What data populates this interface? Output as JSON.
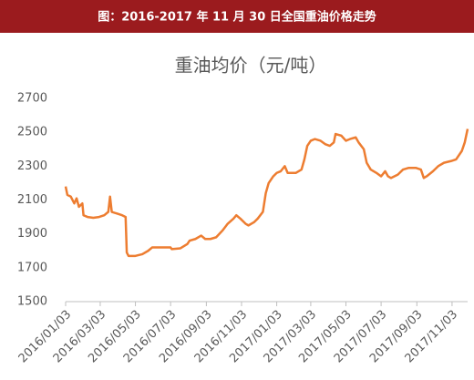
{
  "header": {
    "title": "图：2016-2017 年 11 月 30 日全国重油价格走势"
  },
  "chart_data": {
    "type": "line",
    "title": "重油均价（元/吨）",
    "x": [
      "2016/01/03",
      "2016/01/06",
      "2016/01/12",
      "2016/01/18",
      "2016/01/22",
      "2016/01/26",
      "2016/02/01",
      "2016/02/03",
      "2016/02/10",
      "2016/02/20",
      "2016/03/01",
      "2016/03/10",
      "2016/03/17",
      "2016/03/20",
      "2016/03/23",
      "2016/04/01",
      "2016/04/10",
      "2016/04/16",
      "2016/04/18",
      "2016/04/21",
      "2016/05/03",
      "2016/05/15",
      "2016/05/25",
      "2016/06/01",
      "2016/06/20",
      "2016/07/03",
      "2016/07/05",
      "2016/07/20",
      "2016/08/01",
      "2016/08/05",
      "2016/08/15",
      "2016/08/25",
      "2016/09/01",
      "2016/09/10",
      "2016/09/20",
      "2016/10/01",
      "2016/10/10",
      "2016/10/20",
      "2016/10/25",
      "2016/11/01",
      "2016/11/10",
      "2016/11/15",
      "2016/11/25",
      "2016/12/01",
      "2016/12/10",
      "2016/12/15",
      "2016/12/20",
      "2016/12/28",
      "2017/01/03",
      "2017/01/10",
      "2017/01/17",
      "2017/01/22",
      "2017/02/05",
      "2017/02/15",
      "2017/02/20",
      "2017/02/25",
      "2017/03/03",
      "2017/03/10",
      "2017/03/20",
      "2017/03/28",
      "2017/04/05",
      "2017/04/12",
      "2017/04/15",
      "2017/04/25",
      "2017/05/03",
      "2017/05/10",
      "2017/05/20",
      "2017/05/25",
      "2017/06/03",
      "2017/06/08",
      "2017/06/15",
      "2017/06/25",
      "2017/07/03",
      "2017/07/10",
      "2017/07/15",
      "2017/07/20",
      "2017/08/01",
      "2017/08/10",
      "2017/08/20",
      "2017/09/01",
      "2017/09/10",
      "2017/09/15",
      "2017/09/20",
      "2017/10/01",
      "2017/10/10",
      "2017/10/20",
      "2017/11/01",
      "2017/11/10",
      "2017/11/20",
      "2017/11/25",
      "2017/11/30"
    ],
    "series": [
      {
        "name": "重油均价",
        "color": "#ed7d31",
        "values": [
          2180,
          2130,
          2120,
          2080,
          2110,
          2060,
          2080,
          2010,
          2000,
          1995,
          2000,
          2010,
          2030,
          2120,
          2030,
          2020,
          2010,
          2000,
          1790,
          1770,
          1770,
          1780,
          1800,
          1820,
          1820,
          1820,
          1810,
          1815,
          1840,
          1860,
          1870,
          1890,
          1870,
          1870,
          1880,
          1920,
          1960,
          1990,
          2010,
          1990,
          1960,
          1950,
          1970,
          1990,
          2030,
          2140,
          2200,
          2240,
          2260,
          2270,
          2300,
          2260,
          2260,
          2280,
          2340,
          2420,
          2450,
          2460,
          2450,
          2430,
          2420,
          2440,
          2490,
          2480,
          2450,
          2460,
          2470,
          2440,
          2400,
          2320,
          2280,
          2260,
          2240,
          2270,
          2240,
          2230,
          2250,
          2280,
          2290,
          2290,
          2280,
          2230,
          2240,
          2270,
          2300,
          2320,
          2330,
          2340,
          2390,
          2440,
          2520
        ]
      }
    ],
    "xlim": [
      "2016/01/03",
      "2017/11/30"
    ],
    "xticks": [
      "2016/01/03",
      "2016/03/03",
      "2016/05/03",
      "2016/07/03",
      "2016/09/03",
      "2016/11/03",
      "2017/01/03",
      "2017/03/03",
      "2017/05/03",
      "2017/07/03",
      "2017/09/03",
      "2017/11/03"
    ],
    "ylim": [
      1500,
      2700
    ],
    "yticks": [
      1500,
      1700,
      1900,
      2100,
      2300,
      2500,
      2700
    ],
    "grid": false
  }
}
